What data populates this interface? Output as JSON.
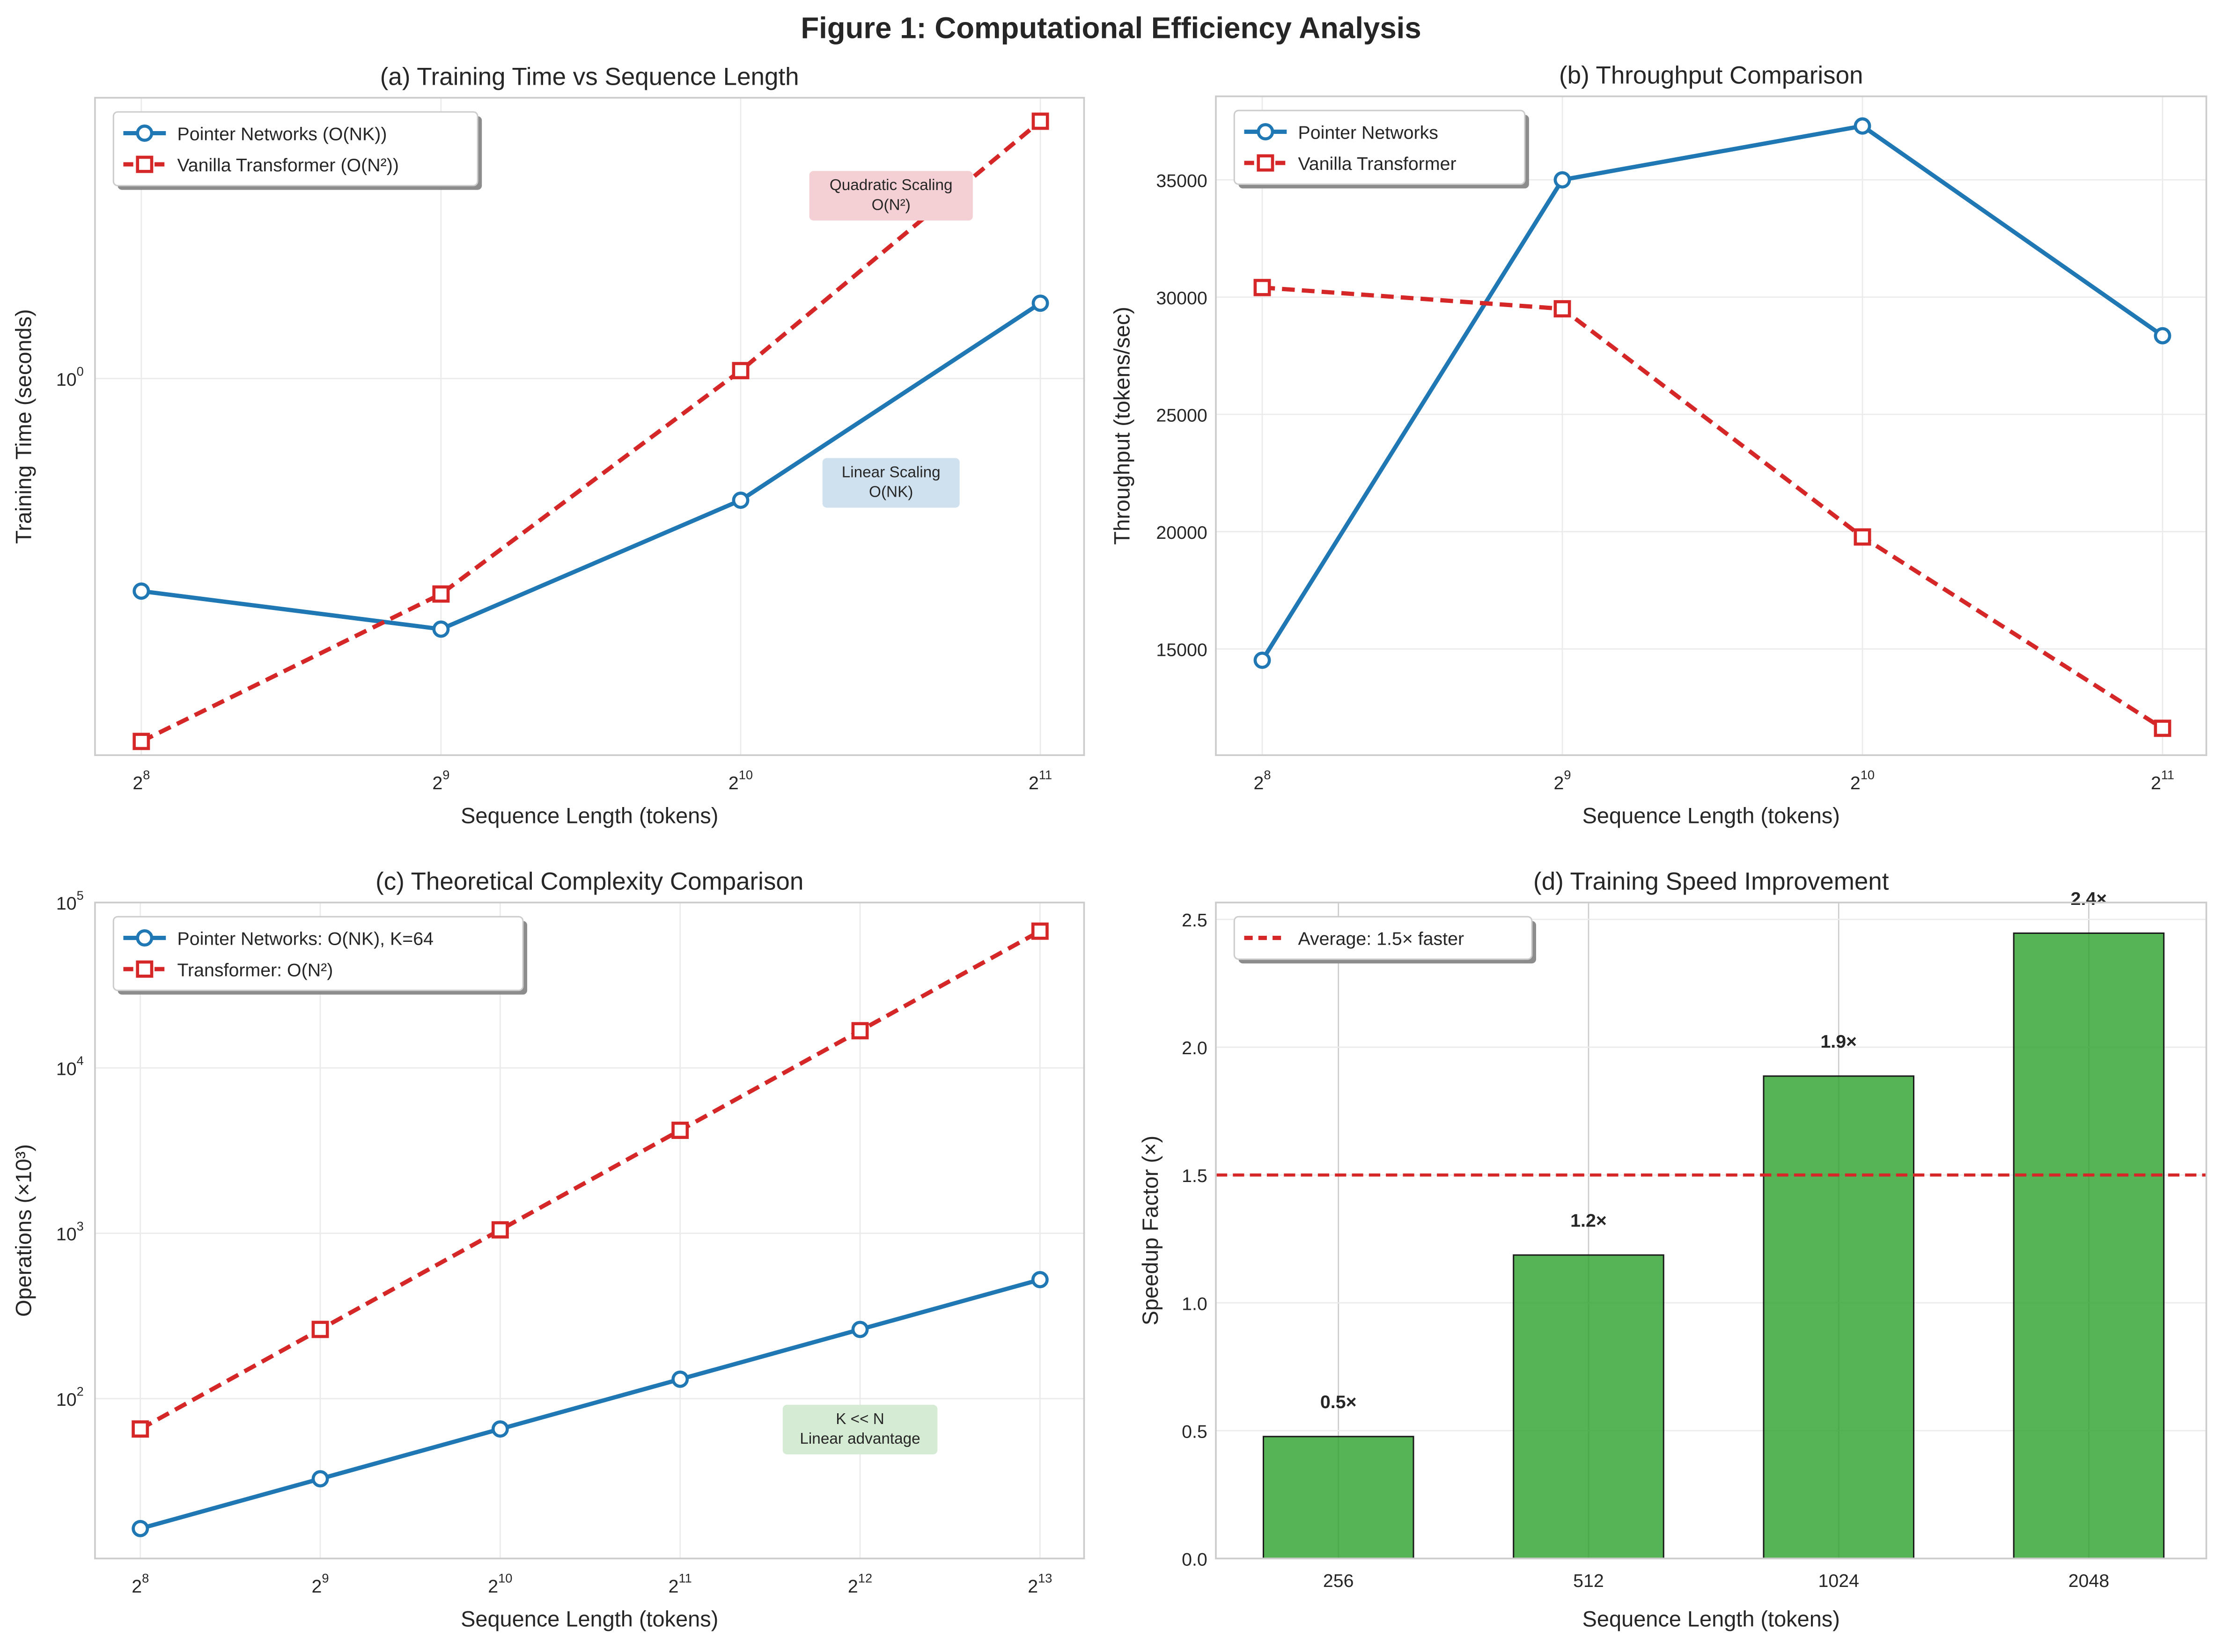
{
  "figure_title": "Figure 1: Computational Efficiency Analysis",
  "chart_data": [
    {
      "id": "a",
      "type": "line",
      "title": "(a) Training Time vs Sequence Length",
      "xlabel": "Sequence Length (tokens)",
      "ylabel": "Training Time (seconds)",
      "xscale": "log2",
      "yscale": "log10",
      "x": [
        256,
        512,
        1024,
        2048
      ],
      "xlim": [
        230,
        2266
      ],
      "ylim": [
        0.158,
        3.96
      ],
      "xticks": [
        {
          "value": 256,
          "base": "2",
          "exp": "8"
        },
        {
          "value": 512,
          "base": "2",
          "exp": "9"
        },
        {
          "value": 1024,
          "base": "2",
          "exp": "10"
        },
        {
          "value": 2048,
          "base": "2",
          "exp": "11"
        }
      ],
      "yticks": [
        {
          "value": 1,
          "base": "10",
          "exp": "0"
        }
      ],
      "grid": true,
      "legend": "top-left",
      "series": [
        {
          "name": "Pointer Networks (O(NK))",
          "color": "#1f77b4",
          "marker": "circle",
          "dash": false,
          "values": [
            0.353,
            0.293,
            0.551,
            1.447
          ]
        },
        {
          "name": "Vanilla Transformer (O(N²))",
          "color": "#d62728",
          "marker": "square",
          "dash": true,
          "values": [
            0.169,
            0.348,
            1.04,
            3.53
          ]
        }
      ],
      "annotations": [
        {
          "lines": [
            "Quadratic Scaling",
            "O(N²)"
          ],
          "x": 1450,
          "y": 2.45,
          "bg": "#f4d0d4"
        },
        {
          "lines": [
            "Linear Scaling",
            "O(NK)"
          ],
          "x": 1450,
          "y": 0.6,
          "bg": "#cfe1ee"
        }
      ]
    },
    {
      "id": "b",
      "type": "line",
      "title": "(b) Throughput Comparison",
      "xlabel": "Sequence Length (tokens)",
      "ylabel": "Throughput (tokens/sec)",
      "xscale": "log2",
      "yscale": "linear",
      "x": [
        256,
        512,
        1024,
        2048
      ],
      "xlim": [
        230,
        2266
      ],
      "ylim": [
        10470,
        38560
      ],
      "xticks": [
        {
          "value": 256,
          "base": "2",
          "exp": "8"
        },
        {
          "value": 512,
          "base": "2",
          "exp": "9"
        },
        {
          "value": 1024,
          "base": "2",
          "exp": "10"
        },
        {
          "value": 2048,
          "base": "2",
          "exp": "11"
        }
      ],
      "yticks": [
        {
          "value": 15000,
          "label": "15000"
        },
        {
          "value": 20000,
          "label": "20000"
        },
        {
          "value": 25000,
          "label": "25000"
        },
        {
          "value": 30000,
          "label": "30000"
        },
        {
          "value": 35000,
          "label": "35000"
        }
      ],
      "grid": true,
      "legend": "top-left",
      "series": [
        {
          "name": "Pointer Networks",
          "color": "#1f77b4",
          "marker": "circle",
          "dash": false,
          "values": [
            14517,
            35000,
            37296,
            28353
          ]
        },
        {
          "name": "Vanilla Transformer",
          "color": "#d62728",
          "marker": "square",
          "dash": true,
          "values": [
            30408,
            29502,
            19773,
            11616
          ]
        }
      ],
      "annotations": []
    },
    {
      "id": "c",
      "type": "line",
      "title": "(c) Theoretical Complexity Comparison",
      "xlabel": "Sequence Length (tokens)",
      "ylabel": "Operations (×10³)",
      "xscale": "log2",
      "yscale": "log10",
      "x": [
        256,
        512,
        1024,
        2048,
        4096,
        8192
      ],
      "xlim": [
        215,
        9708
      ],
      "ylim": [
        10.8,
        100000
      ],
      "xticks": [
        {
          "value": 256,
          "base": "2",
          "exp": "8"
        },
        {
          "value": 512,
          "base": "2",
          "exp": "9"
        },
        {
          "value": 1024,
          "base": "2",
          "exp": "10"
        },
        {
          "value": 2048,
          "base": "2",
          "exp": "11"
        },
        {
          "value": 4096,
          "base": "2",
          "exp": "12"
        },
        {
          "value": 8192,
          "base": "2",
          "exp": "13"
        }
      ],
      "yticks": [
        {
          "value": 100,
          "base": "10",
          "exp": "2"
        },
        {
          "value": 1000,
          "base": "10",
          "exp": "3"
        },
        {
          "value": 10000,
          "base": "10",
          "exp": "4"
        },
        {
          "value": 100000,
          "base": "10",
          "exp": "5"
        }
      ],
      "grid": true,
      "legend": "top-left",
      "series": [
        {
          "name": "Pointer Networks: O(NK), K=64",
          "color": "#1f77b4",
          "marker": "circle",
          "dash": false,
          "values": [
            16.384,
            32.768,
            65.536,
            131.072,
            262.144,
            524.288
          ]
        },
        {
          "name": "Transformer: O(N²)",
          "color": "#d62728",
          "marker": "square",
          "dash": true,
          "values": [
            65.536,
            262.144,
            1048.576,
            4194.304,
            16777.216,
            67108.864
          ]
        }
      ],
      "annotations": [
        {
          "lines": [
            "K << N",
            "Linear advantage"
          ],
          "x": 4096,
          "y": 65,
          "bg": "#d5ebd3"
        }
      ]
    },
    {
      "id": "d",
      "type": "bar",
      "title": "(d) Training Speed Improvement",
      "xlabel": "Sequence Length (tokens)",
      "ylabel": "Speedup Factor (×)",
      "categories": [
        "256",
        "512",
        "1024",
        "2048"
      ],
      "values": [
        0.477,
        1.187,
        1.887,
        2.446
      ],
      "bar_labels": [
        "0.5×",
        "1.2×",
        "1.9×",
        "2.4×"
      ],
      "bar_color": "#2ca02c",
      "ylim": [
        0,
        2.566
      ],
      "yticks": [
        {
          "value": 0,
          "label": "0.0"
        },
        {
          "value": 0.5,
          "label": "0.5"
        },
        {
          "value": 1,
          "label": "1.0"
        },
        {
          "value": 1.5,
          "label": "1.5"
        },
        {
          "value": 2,
          "label": "2.0"
        },
        {
          "value": 2.5,
          "label": "2.5"
        }
      ],
      "grid": true,
      "legend": "top-left",
      "reference_line": {
        "value": 1.5,
        "name": "Average: 1.5× faster",
        "color": "#d62728"
      }
    }
  ]
}
